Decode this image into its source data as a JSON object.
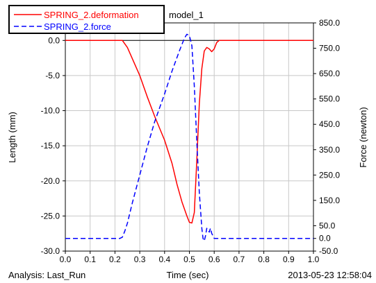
{
  "chart_data": {
    "type": "line",
    "title": "model_1",
    "xlabel": "Time (sec)",
    "ylabel_left": "Length (mm)",
    "ylabel_right": "Force (newton)",
    "xlim": [
      0.0,
      1.0
    ],
    "ylim_left": [
      -30.0,
      2.5
    ],
    "ylim_right": [
      -50.0,
      850.0
    ],
    "x_ticks": [
      "0.0",
      "0.1",
      "0.2",
      "0.3",
      "0.4",
      "0.5",
      "0.6",
      "0.7",
      "0.8",
      "0.9",
      "1.0"
    ],
    "y_ticks_left": [
      "0.0",
      "-5.0",
      "-10.0",
      "-15.0",
      "-20.0",
      "-25.0",
      "-30.0"
    ],
    "y_ticks_right": [
      "850.0",
      "750.0",
      "650.0",
      "550.0",
      "450.0",
      "350.0",
      "250.0",
      "150.0",
      "50.0",
      "0.0",
      "-50.0"
    ],
    "grid": true,
    "legend_position": "top-left",
    "series": [
      {
        "name": "SPRING_2.deformation",
        "axis": "left",
        "color": "#ff0000",
        "style": "solid",
        "points": [
          [
            0.0,
            0.0
          ],
          [
            0.2,
            0.0
          ],
          [
            0.23,
            0.0
          ],
          [
            0.25,
            -1.0
          ],
          [
            0.27,
            -2.6
          ],
          [
            0.3,
            -5.0
          ],
          [
            0.33,
            -8.0
          ],
          [
            0.36,
            -10.8
          ],
          [
            0.4,
            -14.2
          ],
          [
            0.43,
            -17.5
          ],
          [
            0.45,
            -20.5
          ],
          [
            0.47,
            -23.0
          ],
          [
            0.49,
            -25.0
          ],
          [
            0.5,
            -25.9
          ],
          [
            0.51,
            -26.0
          ],
          [
            0.52,
            -24.5
          ],
          [
            0.53,
            -17.0
          ],
          [
            0.54,
            -9.0
          ],
          [
            0.55,
            -4.0
          ],
          [
            0.56,
            -1.5
          ],
          [
            0.57,
            -1.0
          ],
          [
            0.58,
            -1.2
          ],
          [
            0.59,
            -1.6
          ],
          [
            0.6,
            -1.2
          ],
          [
            0.61,
            -0.3
          ],
          [
            0.62,
            0.0
          ],
          [
            1.0,
            0.0
          ]
        ]
      },
      {
        "name": "SPRING_2.force",
        "axis": "right",
        "color": "#0000ff",
        "style": "dashed",
        "points": [
          [
            0.0,
            0.0
          ],
          [
            0.22,
            0.0
          ],
          [
            0.23,
            5.0
          ],
          [
            0.24,
            30.0
          ],
          [
            0.25,
            60.0
          ],
          [
            0.27,
            140.0
          ],
          [
            0.3,
            250.0
          ],
          [
            0.33,
            360.0
          ],
          [
            0.36,
            460.0
          ],
          [
            0.4,
            570.0
          ],
          [
            0.43,
            660.0
          ],
          [
            0.46,
            740.0
          ],
          [
            0.48,
            790.0
          ],
          [
            0.49,
            805.0
          ],
          [
            0.5,
            800.0
          ],
          [
            0.51,
            760.0
          ],
          [
            0.52,
            600.0
          ],
          [
            0.53,
            380.0
          ],
          [
            0.54,
            180.0
          ],
          [
            0.55,
            40.0
          ],
          [
            0.555,
            0.0
          ],
          [
            0.56,
            -10.0
          ],
          [
            0.565,
            10.0
          ],
          [
            0.57,
            40.0
          ],
          [
            0.58,
            25.0
          ],
          [
            0.585,
            40.0
          ],
          [
            0.59,
            20.0
          ],
          [
            0.6,
            0.0
          ],
          [
            1.0,
            0.0
          ]
        ]
      }
    ]
  },
  "footer": {
    "analysis": "Analysis:  Last_Run",
    "timestamp": "2013-05-23 12:58:04"
  }
}
